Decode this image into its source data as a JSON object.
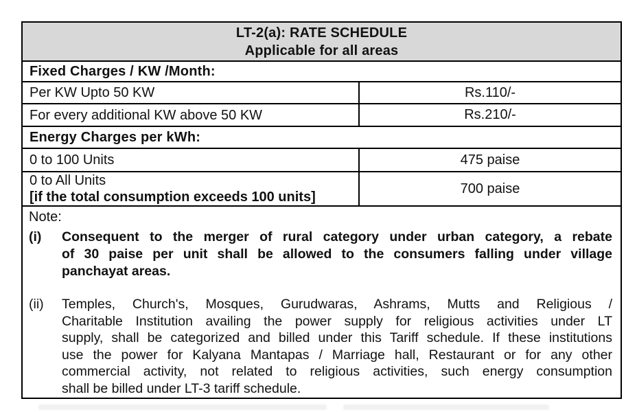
{
  "colors": {
    "header_bg": "#d8d8d8",
    "border": "#000000",
    "text": "#111111"
  },
  "table": {
    "title": {
      "line1": "LT-2(a): RATE SCHEDULE",
      "line2": "Applicable for all areas"
    },
    "fixed_charges": {
      "heading": "Fixed Charges / KW /Month:",
      "rows": [
        {
          "label": "Per KW Upto 50 KW",
          "value": "Rs.110/-"
        },
        {
          "label": "For every additional KW above 50 KW",
          "value": "Rs.210/-"
        }
      ]
    },
    "energy_charges": {
      "heading": "Energy Charges per kWh:",
      "rows": [
        {
          "label": "0 to 100 Units",
          "value": "475 paise"
        },
        {
          "label": "0 to All Units",
          "label_note": "[if the total consumption exceeds 100 units]",
          "value": "700 paise"
        }
      ]
    },
    "note": {
      "heading": "Note:",
      "items": [
        {
          "marker": "(i)",
          "lines": [
            "Consequent to the merger of rural category under urban category, a rebate",
            "of 30 paise per unit shall be allowed to the consumers falling under village",
            "panchayat areas."
          ]
        },
        {
          "marker": "(ii)",
          "lines": [
            "Temples, Church's, Mosques, Gurudwaras, Ashrams, Mutts and Religious /",
            "Charitable Institution availing the power supply for religious activities under LT",
            "supply, shall be categorized and billed under this Tariff schedule.  If these institutions",
            "use the power for Kalyana Mantapas / Marriage hall, Restaurant or for any other",
            "commercial activity, not related to religious activities, such energy consumption",
            "shall be billed under LT-3 tariff schedule."
          ]
        }
      ]
    }
  }
}
